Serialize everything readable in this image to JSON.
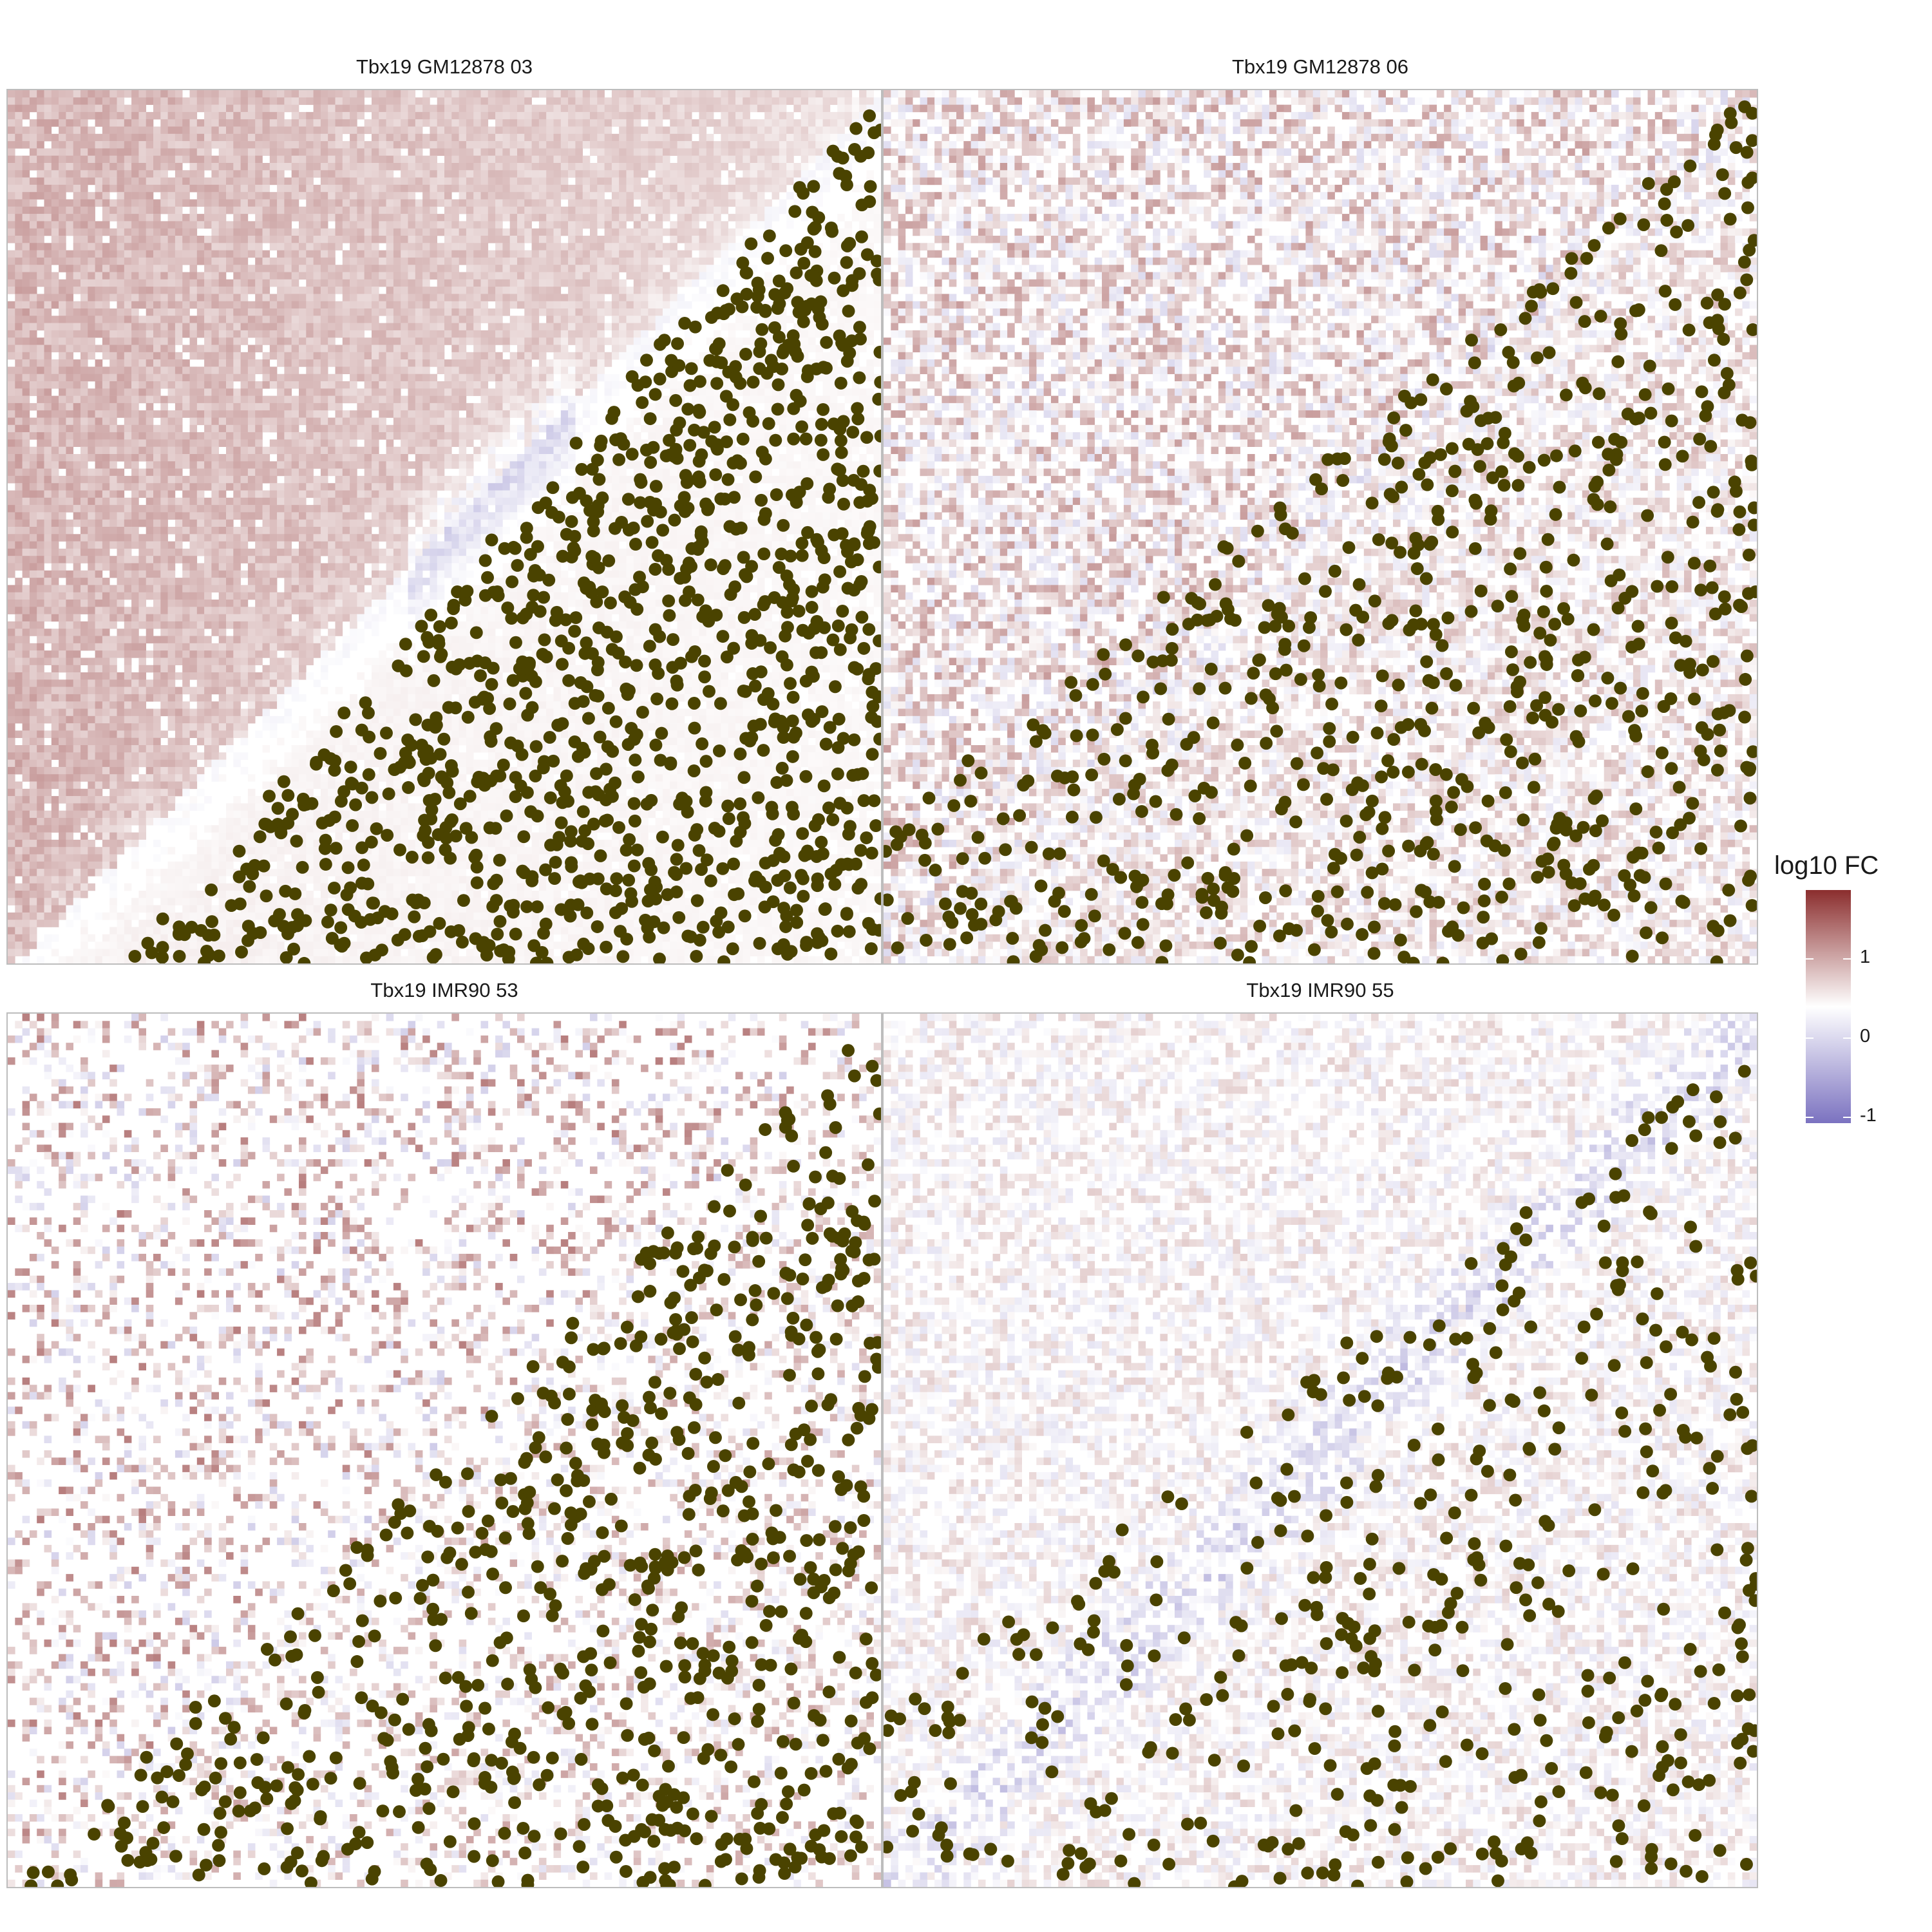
{
  "chart_data": {
    "type": "heatmap",
    "panels": [
      {
        "title": "Tbx19 GM12878 03",
        "pattern": "tad",
        "seed": 3,
        "density": 0.95,
        "sparsity": 0.05,
        "pos_amp": 0.55,
        "neg_amp": 0.25,
        "points": 1150,
        "point_slope": 1.15
      },
      {
        "title": "Tbx19 GM12878 06",
        "pattern": "mixed",
        "seed": 6,
        "density": 0.55,
        "sparsity": 0.2,
        "pos_amp": 0.5,
        "neg_amp": 0.2,
        "points": 720,
        "point_slope": 0.85
      },
      {
        "title": "Tbx19 IMR90 53",
        "pattern": "sparse",
        "seed": 53,
        "density": 0.3,
        "sparsity": 0.55,
        "pos_amp": 0.65,
        "neg_amp": 0.15,
        "points": 720,
        "point_slope": 1.0
      },
      {
        "title": "Tbx19 IMR90 55",
        "pattern": "blue",
        "seed": 55,
        "density": 0.5,
        "sparsity": 0.25,
        "pos_amp": 0.4,
        "neg_amp": 0.35,
        "points": 440,
        "point_slope": 0.8
      }
    ],
    "legend": {
      "title": "log10 FC",
      "ticks": [
        "1",
        "0",
        "-1"
      ],
      "tick_values": [
        1,
        0,
        -1
      ],
      "range": [
        -1.5,
        1.5
      ]
    },
    "colors": {
      "high": "#8b2e2e",
      "mid": "#ffffff",
      "low": "#7b72c0",
      "points": "#4a4300"
    }
  }
}
